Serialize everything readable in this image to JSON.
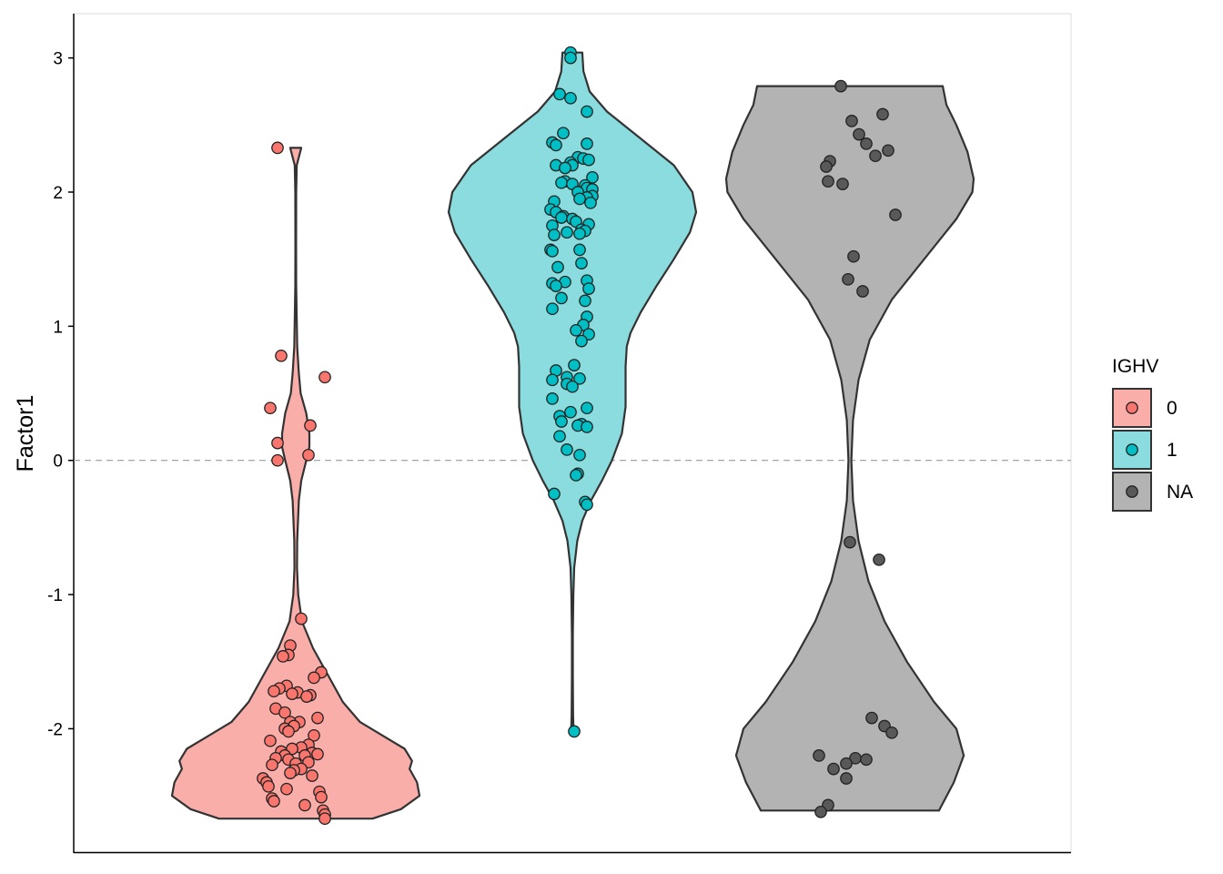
{
  "chart_data": {
    "type": "violin",
    "ylabel": "Factor1",
    "xlabel": "",
    "ylim": [
      -2.92,
      3.33
    ],
    "yticks": [
      3,
      2,
      1,
      0,
      -1,
      -2
    ],
    "ytick_labels": [
      "3",
      "2",
      "1",
      "0",
      "-1",
      "-2"
    ],
    "reference_line": {
      "y": 0,
      "style": "dashed",
      "color": "#999999"
    },
    "legend": {
      "title": "IGHV",
      "placement": "right",
      "entries": [
        {
          "label": "0",
          "fill": "#F8766D",
          "area": "#F9AEAA"
        },
        {
          "label": "1",
          "fill": "#00BFC4",
          "area": "#8ADCDE"
        },
        {
          "label": "NA",
          "fill": "#595959",
          "area": "#B3B3B3"
        }
      ]
    },
    "groups": [
      {
        "label": "0",
        "color": "#F8766D",
        "area_color": "#F9AEAA",
        "ymin": -2.67,
        "ymax": 2.33,
        "density": [
          [
            -2.67,
            0.62
          ],
          [
            -2.6,
            0.85
          ],
          [
            -2.5,
            1.0
          ],
          [
            -2.4,
            0.98
          ],
          [
            -2.3,
            0.92
          ],
          [
            -2.24,
            0.94
          ],
          [
            -2.15,
            0.88
          ],
          [
            -2.05,
            0.7
          ],
          [
            -1.95,
            0.52
          ],
          [
            -1.8,
            0.38
          ],
          [
            -1.6,
            0.26
          ],
          [
            -1.4,
            0.14
          ],
          [
            -1.2,
            0.05
          ],
          [
            -1.0,
            0.02
          ],
          [
            -0.8,
            0.01
          ],
          [
            -0.6,
            0.012
          ],
          [
            -0.3,
            0.025
          ],
          [
            -0.15,
            0.045
          ],
          [
            0.0,
            0.085
          ],
          [
            0.1,
            0.11
          ],
          [
            0.2,
            0.11
          ],
          [
            0.35,
            0.085
          ],
          [
            0.5,
            0.04
          ],
          [
            0.65,
            0.025
          ],
          [
            0.85,
            0.012
          ],
          [
            1.05,
            0.008
          ],
          [
            1.3,
            0.004
          ],
          [
            1.6,
            0.003
          ],
          [
            2.0,
            0.004
          ],
          [
            2.2,
            0.008
          ],
          [
            2.33,
            0.045
          ]
        ],
        "points": [
          [
            2.33,
            -0.1
          ],
          [
            0.78,
            -0.08
          ],
          [
            0.62,
            0.16
          ],
          [
            0.39,
            -0.14
          ],
          [
            0.26,
            0.08
          ],
          [
            0.13,
            -0.1
          ],
          [
            0.04,
            0.07
          ],
          [
            0.0,
            -0.1
          ],
          [
            -1.18,
            0.03
          ],
          [
            -1.38,
            -0.03
          ],
          [
            -1.45,
            -0.04
          ],
          [
            -1.46,
            -0.07
          ],
          [
            -1.58,
            0.14
          ],
          [
            -1.62,
            0.1
          ],
          [
            -1.68,
            -0.05
          ],
          [
            -1.7,
            -0.09
          ],
          [
            -1.72,
            -0.12
          ],
          [
            -1.73,
            0.01
          ],
          [
            -1.74,
            -0.02
          ],
          [
            -1.75,
            0.08
          ],
          [
            -1.76,
            0.06
          ],
          [
            -1.85,
            -0.11
          ],
          [
            -1.88,
            -0.06
          ],
          [
            -1.92,
            0.12
          ],
          [
            -1.95,
            0.02
          ],
          [
            -1.95,
            -0.03
          ],
          [
            -1.98,
            -0.01
          ],
          [
            -2.0,
            -0.06
          ],
          [
            -2.02,
            -0.04
          ],
          [
            -2.05,
            0.1
          ],
          [
            -2.09,
            -0.14
          ],
          [
            -2.12,
            0.07
          ],
          [
            -2.14,
            0.03
          ],
          [
            -2.15,
            -0.02
          ],
          [
            -2.17,
            -0.08
          ],
          [
            -2.18,
            0.09
          ],
          [
            -2.19,
            0.12
          ],
          [
            -2.2,
            0.05
          ],
          [
            -2.2,
            -0.06
          ],
          [
            -2.22,
            -0.11
          ],
          [
            -2.23,
            -0.04
          ],
          [
            -2.25,
            0.07
          ],
          [
            -2.26,
            0.0
          ],
          [
            -2.27,
            -0.13
          ],
          [
            -2.3,
            0.03
          ],
          [
            -2.31,
            -0.01
          ],
          [
            -2.33,
            -0.03
          ],
          [
            -2.35,
            0.09
          ],
          [
            -2.37,
            -0.18
          ],
          [
            -2.4,
            -0.16
          ],
          [
            -2.43,
            -0.15
          ],
          [
            -2.45,
            -0.05
          ],
          [
            -2.47,
            0.13
          ],
          [
            -2.51,
            0.14
          ],
          [
            -2.52,
            -0.13
          ],
          [
            -2.54,
            -0.12
          ],
          [
            -2.57,
            0.05
          ],
          [
            -2.61,
            0.15
          ],
          [
            -2.64,
            0.16
          ],
          [
            -2.67,
            0.16
          ]
        ]
      },
      {
        "label": "1",
        "color": "#00BFC4",
        "area_color": "#8ADCDE",
        "ymin": -2.02,
        "ymax": 3.04,
        "density": [
          [
            -2.02,
            0.01
          ],
          [
            -1.9,
            0.006
          ],
          [
            -1.6,
            0.004
          ],
          [
            -1.3,
            0.004
          ],
          [
            -1.0,
            0.008
          ],
          [
            -0.8,
            0.015
          ],
          [
            -0.6,
            0.04
          ],
          [
            -0.45,
            0.08
          ],
          [
            -0.3,
            0.15
          ],
          [
            -0.15,
            0.24
          ],
          [
            0.0,
            0.32
          ],
          [
            0.2,
            0.4
          ],
          [
            0.4,
            0.43
          ],
          [
            0.55,
            0.43
          ],
          [
            0.7,
            0.43
          ],
          [
            0.85,
            0.44
          ],
          [
            0.95,
            0.47
          ],
          [
            1.1,
            0.55
          ],
          [
            1.3,
            0.68
          ],
          [
            1.5,
            0.82
          ],
          [
            1.7,
            0.95
          ],
          [
            1.85,
            1.0
          ],
          [
            2.0,
            0.97
          ],
          [
            2.2,
            0.82
          ],
          [
            2.4,
            0.55
          ],
          [
            2.6,
            0.28
          ],
          [
            2.75,
            0.14
          ],
          [
            2.9,
            0.09
          ],
          [
            3.04,
            0.08
          ]
        ],
        "points": [
          [
            3.04,
            -0.01
          ],
          [
            3.0,
            -0.01
          ],
          [
            2.73,
            -0.07
          ],
          [
            2.7,
            -0.01
          ],
          [
            2.6,
            0.08
          ],
          [
            2.44,
            -0.05
          ],
          [
            2.37,
            -0.11
          ],
          [
            2.36,
            0.08
          ],
          [
            2.35,
            -0.09
          ],
          [
            2.26,
            0.03
          ],
          [
            2.25,
            0.06
          ],
          [
            2.24,
            0.09
          ],
          [
            2.22,
            -0.01
          ],
          [
            2.2,
            -0.09
          ],
          [
            2.2,
            0.0
          ],
          [
            2.18,
            -0.04
          ],
          [
            2.11,
            0.11
          ],
          [
            2.08,
            -0.04
          ],
          [
            2.07,
            -0.06
          ],
          [
            2.06,
            0.0
          ],
          [
            2.05,
            0.07
          ],
          [
            2.03,
            0.08
          ],
          [
            2.02,
            0.11
          ],
          [
            2.0,
            0.03
          ],
          [
            1.97,
            0.11
          ],
          [
            1.96,
            0.08
          ],
          [
            1.95,
            0.04
          ],
          [
            1.93,
            -0.1
          ],
          [
            1.92,
            0.1
          ],
          [
            1.87,
            -0.12
          ],
          [
            1.85,
            -0.09
          ],
          [
            1.82,
            -0.05
          ],
          [
            1.81,
            -0.06
          ],
          [
            1.8,
            0.0
          ],
          [
            1.78,
            0.02
          ],
          [
            1.76,
            0.09
          ],
          [
            1.75,
            -0.11
          ],
          [
            1.72,
            0.05
          ],
          [
            1.71,
            0.07
          ],
          [
            1.7,
            -0.03
          ],
          [
            1.69,
            0.04
          ],
          [
            1.68,
            -0.1
          ],
          [
            1.57,
            -0.12
          ],
          [
            1.56,
            -0.11
          ],
          [
            1.57,
            0.04
          ],
          [
            1.47,
            0.05
          ],
          [
            1.44,
            -0.08
          ],
          [
            1.34,
            0.08
          ],
          [
            1.33,
            -0.04
          ],
          [
            1.32,
            -0.11
          ],
          [
            1.3,
            -0.09
          ],
          [
            1.28,
            0.09
          ],
          [
            1.21,
            -0.06
          ],
          [
            1.19,
            0.07
          ],
          [
            1.13,
            -0.11
          ],
          [
            1.07,
            0.08
          ],
          [
            1.01,
            0.06
          ],
          [
            0.97,
            0.02
          ],
          [
            0.94,
            0.09
          ],
          [
            0.89,
            0.05
          ],
          [
            0.71,
            0.01
          ],
          [
            0.67,
            -0.09
          ],
          [
            0.62,
            -0.03
          ],
          [
            0.61,
            0.04
          ],
          [
            0.6,
            -0.11
          ],
          [
            0.57,
            -0.03
          ],
          [
            0.55,
            0.0
          ],
          [
            0.46,
            -0.11
          ],
          [
            0.39,
            0.08
          ],
          [
            0.36,
            -0.01
          ],
          [
            0.33,
            -0.07
          ],
          [
            0.29,
            -0.06
          ],
          [
            0.27,
            0.05
          ],
          [
            0.26,
            0.03
          ],
          [
            0.25,
            0.08
          ],
          [
            0.18,
            -0.07
          ],
          [
            0.08,
            -0.03
          ],
          [
            0.04,
            0.04
          ],
          [
            -0.1,
            0.03
          ],
          [
            -0.11,
            0.02
          ],
          [
            -0.25,
            -0.1
          ],
          [
            -0.31,
            0.07
          ],
          [
            -0.33,
            0.08
          ],
          [
            -2.02,
            0.01
          ]
        ]
      },
      {
        "label": "NA",
        "color": "#595959",
        "area_color": "#B3B3B3",
        "ymin": -2.61,
        "ymax": 2.79,
        "density": [
          [
            -2.61,
            0.72
          ],
          [
            -2.4,
            0.84
          ],
          [
            -2.2,
            0.92
          ],
          [
            -2.0,
            0.86
          ],
          [
            -1.8,
            0.68
          ],
          [
            -1.5,
            0.46
          ],
          [
            -1.2,
            0.28
          ],
          [
            -0.9,
            0.15
          ],
          [
            -0.6,
            0.07
          ],
          [
            -0.3,
            0.025
          ],
          [
            0.0,
            0.012
          ],
          [
            0.3,
            0.025
          ],
          [
            0.6,
            0.07
          ],
          [
            0.9,
            0.16
          ],
          [
            1.2,
            0.34
          ],
          [
            1.5,
            0.6
          ],
          [
            1.8,
            0.86
          ],
          [
            2.0,
            0.99
          ],
          [
            2.1,
            1.0
          ],
          [
            2.3,
            0.95
          ],
          [
            2.5,
            0.86
          ],
          [
            2.65,
            0.78
          ],
          [
            2.79,
            0.75
          ]
        ],
        "points": [
          [
            2.79,
            -0.05
          ],
          [
            2.58,
            0.18
          ],
          [
            2.53,
            0.01
          ],
          [
            2.43,
            0.05
          ],
          [
            2.36,
            0.09
          ],
          [
            2.31,
            0.21
          ],
          [
            2.27,
            0.14
          ],
          [
            2.23,
            -0.11
          ],
          [
            2.19,
            -0.13
          ],
          [
            2.08,
            -0.12
          ],
          [
            2.06,
            -0.04
          ],
          [
            1.83,
            0.25
          ],
          [
            1.52,
            0.02
          ],
          [
            1.35,
            -0.01
          ],
          [
            1.26,
            0.07
          ],
          [
            -0.61,
            0.0
          ],
          [
            -0.74,
            0.16
          ],
          [
            -1.92,
            0.12
          ],
          [
            -1.98,
            0.19
          ],
          [
            -2.03,
            0.23
          ],
          [
            -2.2,
            -0.17
          ],
          [
            -2.22,
            0.03
          ],
          [
            -2.23,
            0.09
          ],
          [
            -2.26,
            -0.02
          ],
          [
            -2.3,
            -0.09
          ],
          [
            -2.37,
            -0.02
          ],
          [
            -2.57,
            -0.12
          ],
          [
            -2.62,
            -0.16
          ]
        ]
      }
    ]
  }
}
